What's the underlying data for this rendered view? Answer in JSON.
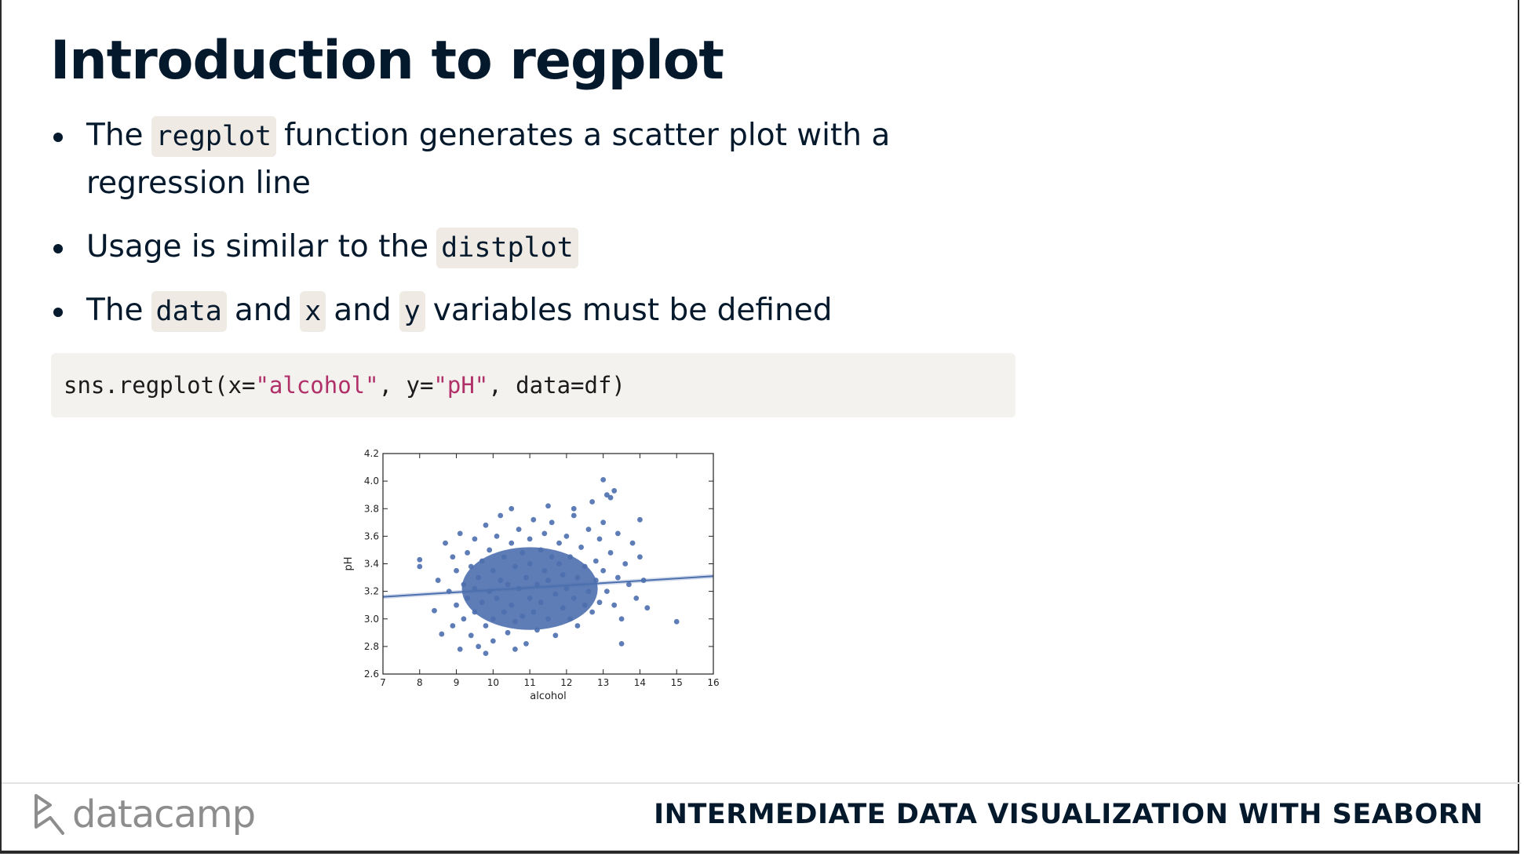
{
  "slide": {
    "title": "Introduction to regplot",
    "bullets": [
      {
        "pre": "The",
        "code": "regplot",
        "post": "function generates a scatter plot with a regression line"
      },
      {
        "pre": "Usage is similar to the",
        "code": "distplot"
      },
      {
        "pre": "The",
        "code1": "data",
        "mid1": "and",
        "code2": "x",
        "mid2": "and",
        "code3": "y",
        "post": "variables must be defined"
      }
    ],
    "code": {
      "p1": "sns.regplot(x=",
      "s1": "\"alcohol\"",
      "p2": ", y=",
      "s2": "\"pH\"",
      "p3": ", data=df)"
    }
  },
  "footer": {
    "logo_text": "datacamp",
    "course": "INTERMEDIATE DATA VISUALIZATION WITH SEABORN"
  },
  "colors": {
    "points": "#4c6fae",
    "line": "#4c6fae",
    "text": "#05192d"
  },
  "chart_data": {
    "type": "scatter",
    "xlabel": "alcohol",
    "ylabel": "pH",
    "xlim": [
      7,
      16
    ],
    "ylim": [
      2.6,
      4.2
    ],
    "xticks": [
      "7",
      "8",
      "9",
      "10",
      "11",
      "12",
      "13",
      "14",
      "15",
      "16"
    ],
    "yticks": [
      "2.6",
      "2.8",
      "3.0",
      "3.2",
      "3.4",
      "3.6",
      "3.8",
      "4.0",
      "4.2"
    ],
    "regression_line": {
      "x": [
        7,
        16
      ],
      "y": [
        3.16,
        3.31
      ]
    },
    "points": [
      [
        8.0,
        3.43
      ],
      [
        8.0,
        3.38
      ],
      [
        8.4,
        3.06
      ],
      [
        8.5,
        3.28
      ],
      [
        8.6,
        2.89
      ],
      [
        8.7,
        3.55
      ],
      [
        8.8,
        3.2
      ],
      [
        8.9,
        3.45
      ],
      [
        8.9,
        2.95
      ],
      [
        9.0,
        3.1
      ],
      [
        9.0,
        3.35
      ],
      [
        9.1,
        3.62
      ],
      [
        9.1,
        2.78
      ],
      [
        9.2,
        3.25
      ],
      [
        9.2,
        3.0
      ],
      [
        9.3,
        3.48
      ],
      [
        9.3,
        3.15
      ],
      [
        9.4,
        2.88
      ],
      [
        9.4,
        3.38
      ],
      [
        9.5,
        3.05
      ],
      [
        9.5,
        3.22
      ],
      [
        9.5,
        3.58
      ],
      [
        9.6,
        2.8
      ],
      [
        9.6,
        3.3
      ],
      [
        9.7,
        3.12
      ],
      [
        9.7,
        3.42
      ],
      [
        9.8,
        2.95
      ],
      [
        9.8,
        3.68
      ],
      [
        9.9,
        3.2
      ],
      [
        9.9,
        3.5
      ],
      [
        10.0,
        3.0
      ],
      [
        10.0,
        3.35
      ],
      [
        10.0,
        2.84
      ],
      [
        10.1,
        3.6
      ],
      [
        10.1,
        3.15
      ],
      [
        10.2,
        3.28
      ],
      [
        10.2,
        3.75
      ],
      [
        10.3,
        3.05
      ],
      [
        10.3,
        3.45
      ],
      [
        10.4,
        2.9
      ],
      [
        10.4,
        3.25
      ],
      [
        10.5,
        3.55
      ],
      [
        10.5,
        3.1
      ],
      [
        10.5,
        3.8
      ],
      [
        10.6,
        3.38
      ],
      [
        10.6,
        2.98
      ],
      [
        10.7,
        3.22
      ],
      [
        10.7,
        3.65
      ],
      [
        10.8,
        3.02
      ],
      [
        10.8,
        3.48
      ],
      [
        10.9,
        3.3
      ],
      [
        10.9,
        2.82
      ],
      [
        11.0,
        3.15
      ],
      [
        11.0,
        3.58
      ],
      [
        11.0,
        3.4
      ],
      [
        11.1,
        3.05
      ],
      [
        11.1,
        3.72
      ],
      [
        11.2,
        3.25
      ],
      [
        11.2,
        2.92
      ],
      [
        11.3,
        3.5
      ],
      [
        11.3,
        3.12
      ],
      [
        11.4,
        3.35
      ],
      [
        11.4,
        3.62
      ],
      [
        11.5,
        3.0
      ],
      [
        11.5,
        3.28
      ],
      [
        11.6,
        3.45
      ],
      [
        11.6,
        3.7
      ],
      [
        11.7,
        3.18
      ],
      [
        11.7,
        2.88
      ],
      [
        11.8,
        3.4
      ],
      [
        11.8,
        3.55
      ],
      [
        11.9,
        3.08
      ],
      [
        11.9,
        3.32
      ],
      [
        12.0,
        3.22
      ],
      [
        12.0,
        3.6
      ],
      [
        12.1,
        3.0
      ],
      [
        12.1,
        3.45
      ],
      [
        12.2,
        3.15
      ],
      [
        12.2,
        3.75
      ],
      [
        12.3,
        3.3
      ],
      [
        12.3,
        2.95
      ],
      [
        12.4,
        3.52
      ],
      [
        12.5,
        3.1
      ],
      [
        12.5,
        3.38
      ],
      [
        12.6,
        3.65
      ],
      [
        12.6,
        3.2
      ],
      [
        12.7,
        3.85
      ],
      [
        12.7,
        3.05
      ],
      [
        12.8,
        3.42
      ],
      [
        12.8,
        3.28
      ],
      [
        12.9,
        3.58
      ],
      [
        12.9,
        3.12
      ],
      [
        13.0,
        3.35
      ],
      [
        13.0,
        3.7
      ],
      [
        13.1,
        3.2
      ],
      [
        13.1,
        3.9
      ],
      [
        13.2,
        3.48
      ],
      [
        13.3,
        3.1
      ],
      [
        13.4,
        3.62
      ],
      [
        13.4,
        3.3
      ],
      [
        13.5,
        3.0
      ],
      [
        13.6,
        3.4
      ],
      [
        13.7,
        3.25
      ],
      [
        13.8,
        3.55
      ],
      [
        13.9,
        3.15
      ],
      [
        14.0,
        3.45
      ],
      [
        14.0,
        3.72
      ],
      [
        14.1,
        3.28
      ],
      [
        14.2,
        3.08
      ],
      [
        13.0,
        4.01
      ],
      [
        13.3,
        3.93
      ],
      [
        13.2,
        3.88
      ],
      [
        15.0,
        2.98
      ],
      [
        13.5,
        2.82
      ],
      [
        9.8,
        2.75
      ],
      [
        10.6,
        2.78
      ],
      [
        11.5,
        3.82
      ],
      [
        12.2,
        3.8
      ]
    ]
  }
}
